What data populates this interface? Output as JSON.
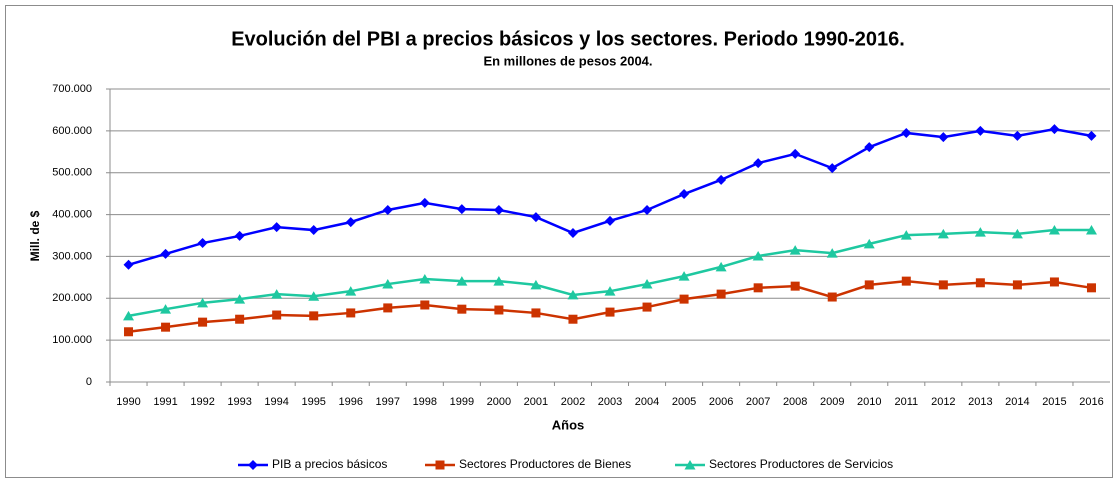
{
  "chart_data": {
    "type": "line",
    "title": "Evolución del PBI a precios básicos y los sectores. Periodo 1990-2016.",
    "subtitle": "En millones de pesos 2004.",
    "x_label": "Años",
    "y_label": "Mill. de $",
    "categories": [
      "1990",
      "1991",
      "1992",
      "1993",
      "1994",
      "1995",
      "1996",
      "1997",
      "1998",
      "1999",
      "2000",
      "2001",
      "2002",
      "2003",
      "2004",
      "2005",
      "2006",
      "2007",
      "2008",
      "2009",
      "2010",
      "2011",
      "2012",
      "2013",
      "2014",
      "2015",
      "2016"
    ],
    "series": [
      {
        "name": "PIB a precios básicos",
        "color": "#0000ff",
        "marker": "diamond",
        "values": [
          280000,
          306000,
          332000,
          349000,
          370000,
          363000,
          382000,
          411000,
          428000,
          413000,
          411000,
          394000,
          356000,
          385000,
          411000,
          449000,
          483000,
          523000,
          545000,
          511000,
          561000,
          595000,
          585000,
          600000,
          588000,
          604000,
          588000
        ]
      },
      {
        "name": "Sectores Productores de Bienes",
        "color": "#cc3300",
        "marker": "square",
        "values": [
          120000,
          131000,
          143000,
          150000,
          160000,
          158000,
          165000,
          177000,
          184000,
          174000,
          172000,
          165000,
          150000,
          167000,
          179000,
          198000,
          210000,
          225000,
          229000,
          203000,
          232000,
          241000,
          232000,
          237000,
          232000,
          239000,
          225000
        ]
      },
      {
        "name": "Sectores Productores de Servicios",
        "color": "#1ec8a0",
        "marker": "triangle",
        "values": [
          158000,
          174000,
          189000,
          198000,
          210000,
          205000,
          217000,
          234000,
          246000,
          241000,
          241000,
          232000,
          208000,
          217000,
          234000,
          253000,
          275000,
          301000,
          315000,
          308000,
          330000,
          351000,
          354000,
          358000,
          354000,
          363000,
          363000
        ]
      }
    ],
    "ylim": [
      0,
      700000
    ],
    "yticks": [
      0,
      {
        "value": 100000,
        "label": "100.000"
      },
      {
        "value": 200000,
        "label": "200.000"
      },
      {
        "value": 300000,
        "label": "300.000"
      },
      {
        "value": 400000,
        "label": "400.000"
      },
      {
        "value": 500000,
        "label": "500.000"
      },
      {
        "value": 600000,
        "label": "600.000"
      },
      {
        "value": 700000,
        "label": "700.000"
      }
    ],
    "grid": true,
    "legend": "bottom"
  }
}
